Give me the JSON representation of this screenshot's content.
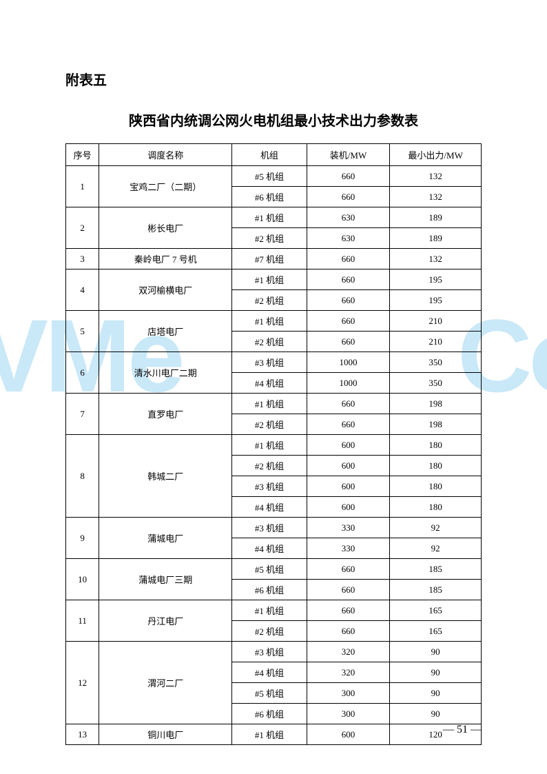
{
  "watermark_left": "VMe",
  "watermark_right": "Co",
  "appendix_label": "附表五",
  "title": "陕西省内统调公网火电机组最小技术出力参数表",
  "headers": {
    "seq": "序号",
    "name": "调度名称",
    "unit": "机组",
    "capacity": "装机/MW",
    "min_output": "最小出力/MW"
  },
  "rows": [
    {
      "seq": "1",
      "name": "宝鸡二厂（二期）",
      "units": [
        {
          "unit": "#5 机组",
          "capacity": "660",
          "min": "132"
        },
        {
          "unit": "#6 机组",
          "capacity": "660",
          "min": "132"
        }
      ]
    },
    {
      "seq": "2",
      "name": "彬长电厂",
      "units": [
        {
          "unit": "#1 机组",
          "capacity": "630",
          "min": "189"
        },
        {
          "unit": "#2 机组",
          "capacity": "630",
          "min": "189"
        }
      ]
    },
    {
      "seq": "3",
      "name": "秦岭电厂 7 号机",
      "units": [
        {
          "unit": "#7 机组",
          "capacity": "660",
          "min": "132"
        }
      ]
    },
    {
      "seq": "4",
      "name": "双河榆横电厂",
      "units": [
        {
          "unit": "#1 机组",
          "capacity": "660",
          "min": "195"
        },
        {
          "unit": "#2 机组",
          "capacity": "660",
          "min": "195"
        }
      ]
    },
    {
      "seq": "5",
      "name": "店塔电厂",
      "units": [
        {
          "unit": "#1 机组",
          "capacity": "660",
          "min": "210"
        },
        {
          "unit": "#2 机组",
          "capacity": "660",
          "min": "210"
        }
      ]
    },
    {
      "seq": "6",
      "name": "清水川电厂二期",
      "units": [
        {
          "unit": "#3 机组",
          "capacity": "1000",
          "min": "350"
        },
        {
          "unit": "#4 机组",
          "capacity": "1000",
          "min": "350"
        }
      ]
    },
    {
      "seq": "7",
      "name": "直罗电厂",
      "units": [
        {
          "unit": "#1 机组",
          "capacity": "660",
          "min": "198"
        },
        {
          "unit": "#2 机组",
          "capacity": "660",
          "min": "198"
        }
      ]
    },
    {
      "seq": "8",
      "name": "韩城二厂",
      "units": [
        {
          "unit": "#1 机组",
          "capacity": "600",
          "min": "180"
        },
        {
          "unit": "#2 机组",
          "capacity": "600",
          "min": "180"
        },
        {
          "unit": "#3 机组",
          "capacity": "600",
          "min": "180"
        },
        {
          "unit": "#4 机组",
          "capacity": "600",
          "min": "180"
        }
      ]
    },
    {
      "seq": "9",
      "name": "蒲城电厂",
      "units": [
        {
          "unit": "#3 机组",
          "capacity": "330",
          "min": "92"
        },
        {
          "unit": "#4 机组",
          "capacity": "330",
          "min": "92"
        }
      ]
    },
    {
      "seq": "10",
      "name": "蒲城电厂三期",
      "units": [
        {
          "unit": "#5 机组",
          "capacity": "660",
          "min": "185"
        },
        {
          "unit": "#6 机组",
          "capacity": "660",
          "min": "185"
        }
      ]
    },
    {
      "seq": "11",
      "name": "丹江电厂",
      "units": [
        {
          "unit": "#1 机组",
          "capacity": "660",
          "min": "165"
        },
        {
          "unit": "#2 机组",
          "capacity": "660",
          "min": "165"
        }
      ]
    },
    {
      "seq": "12",
      "name": "渭河二厂",
      "units": [
        {
          "unit": "#3 机组",
          "capacity": "320",
          "min": "90"
        },
        {
          "unit": "#4 机组",
          "capacity": "320",
          "min": "90"
        },
        {
          "unit": "#5 机组",
          "capacity": "300",
          "min": "90"
        },
        {
          "unit": "#6 机组",
          "capacity": "300",
          "min": "90"
        }
      ]
    },
    {
      "seq": "13",
      "name": "铜川电厂",
      "units": [
        {
          "unit": "#1 机组",
          "capacity": "600",
          "min": "120"
        }
      ]
    }
  ],
  "page_number": "— 51 —"
}
